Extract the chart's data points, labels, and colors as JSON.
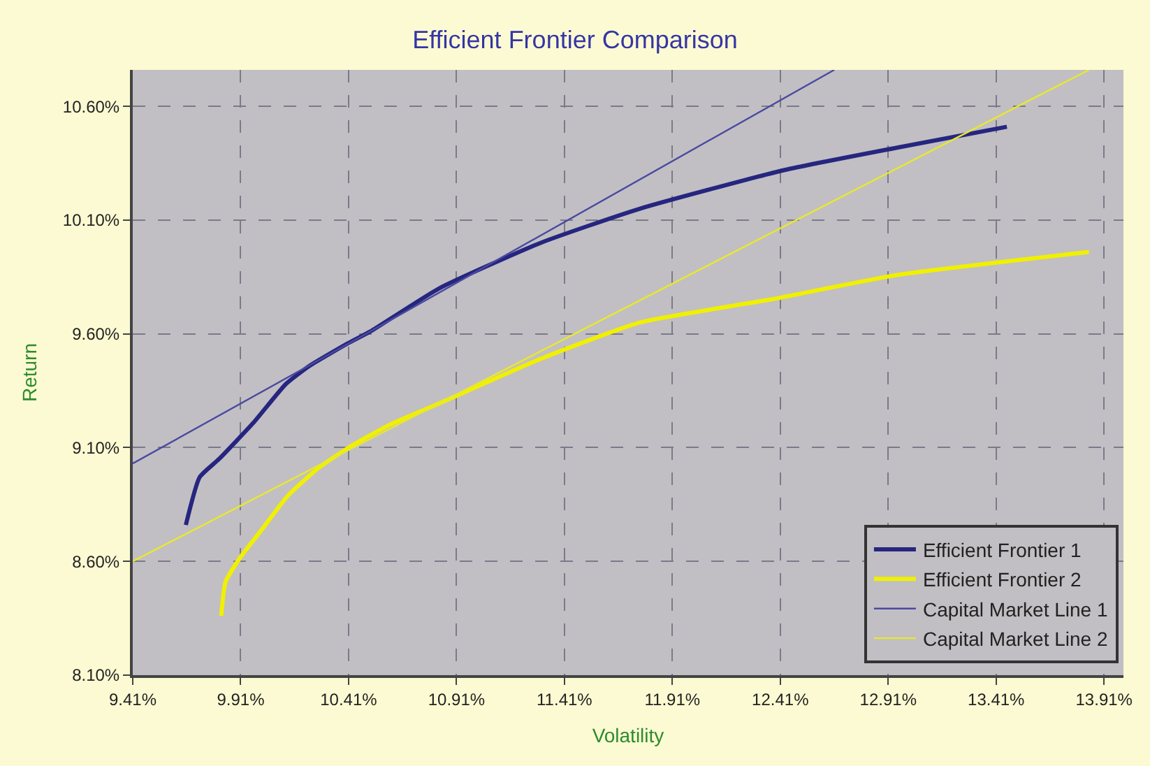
{
  "chart_data": {
    "type": "line",
    "title": "Efficient Frontier Comparison",
    "xlabel": "Volatility",
    "ylabel": "Return",
    "series": [
      {
        "name": "Efficient Frontier 1",
        "color": "#262680",
        "x": [
          9.656,
          9.72,
          9.81,
          9.97,
          10.12,
          10.23,
          10.41,
          10.51,
          10.83,
          11.3,
          11.76,
          12.43,
          12.96,
          13.46
        ],
        "values": [
          8.76,
          8.97,
          9.05,
          9.21,
          9.38,
          9.46,
          9.56,
          9.61,
          9.8,
          10.0,
          10.15,
          10.32,
          10.42,
          10.51
        ]
      },
      {
        "name": "Efficient Frontier 2",
        "color": "#f0f000",
        "x": [
          9.82,
          9.84,
          9.91,
          10.0,
          10.13,
          10.27,
          10.41,
          10.6,
          10.82,
          11.3,
          11.76,
          12.36,
          12.96,
          13.84
        ],
        "values": [
          8.36,
          8.51,
          8.62,
          8.73,
          8.89,
          9.01,
          9.1,
          9.2,
          9.29,
          9.49,
          9.65,
          9.75,
          9.86,
          9.96
        ]
      },
      {
        "name": "Capital Market Line 1",
        "color": "#4a4aa0",
        "x": [
          9.41,
          10.51,
          12.66
        ],
        "values": [
          9.03,
          9.61,
          10.76
        ]
      },
      {
        "name": "Capital Market Line 2",
        "color": "#e8e830",
        "x": [
          9.41,
          10.82,
          13.84
        ],
        "values": [
          8.6,
          9.29,
          10.76
        ]
      }
    ],
    "xlim": [
      9.41,
      14.0
    ],
    "ylim": [
      8.1,
      10.76
    ],
    "xticks": [
      {
        "value": 9.41,
        "label": "9.41%"
      },
      {
        "value": 9.91,
        "label": "9.91%"
      },
      {
        "value": 10.41,
        "label": "10.41%"
      },
      {
        "value": 10.91,
        "label": "10.91%"
      },
      {
        "value": 11.41,
        "label": "11.41%"
      },
      {
        "value": 11.91,
        "label": "11.91%"
      },
      {
        "value": 12.41,
        "label": "12.41%"
      },
      {
        "value": 12.91,
        "label": "12.91%"
      },
      {
        "value": 13.41,
        "label": "13.41%"
      },
      {
        "value": 13.91,
        "label": "13.91%"
      }
    ],
    "yticks": [
      {
        "value": 8.1,
        "label": "8.10%"
      },
      {
        "value": 8.6,
        "label": "8.60%"
      },
      {
        "value": 9.1,
        "label": "9.10%"
      },
      {
        "value": 9.6,
        "label": "9.60%"
      },
      {
        "value": 10.1,
        "label": "10.10%"
      },
      {
        "value": 10.6,
        "label": "10.60%"
      }
    ],
    "grid": true,
    "legend": "bottom right",
    "line_style": "solid"
  }
}
